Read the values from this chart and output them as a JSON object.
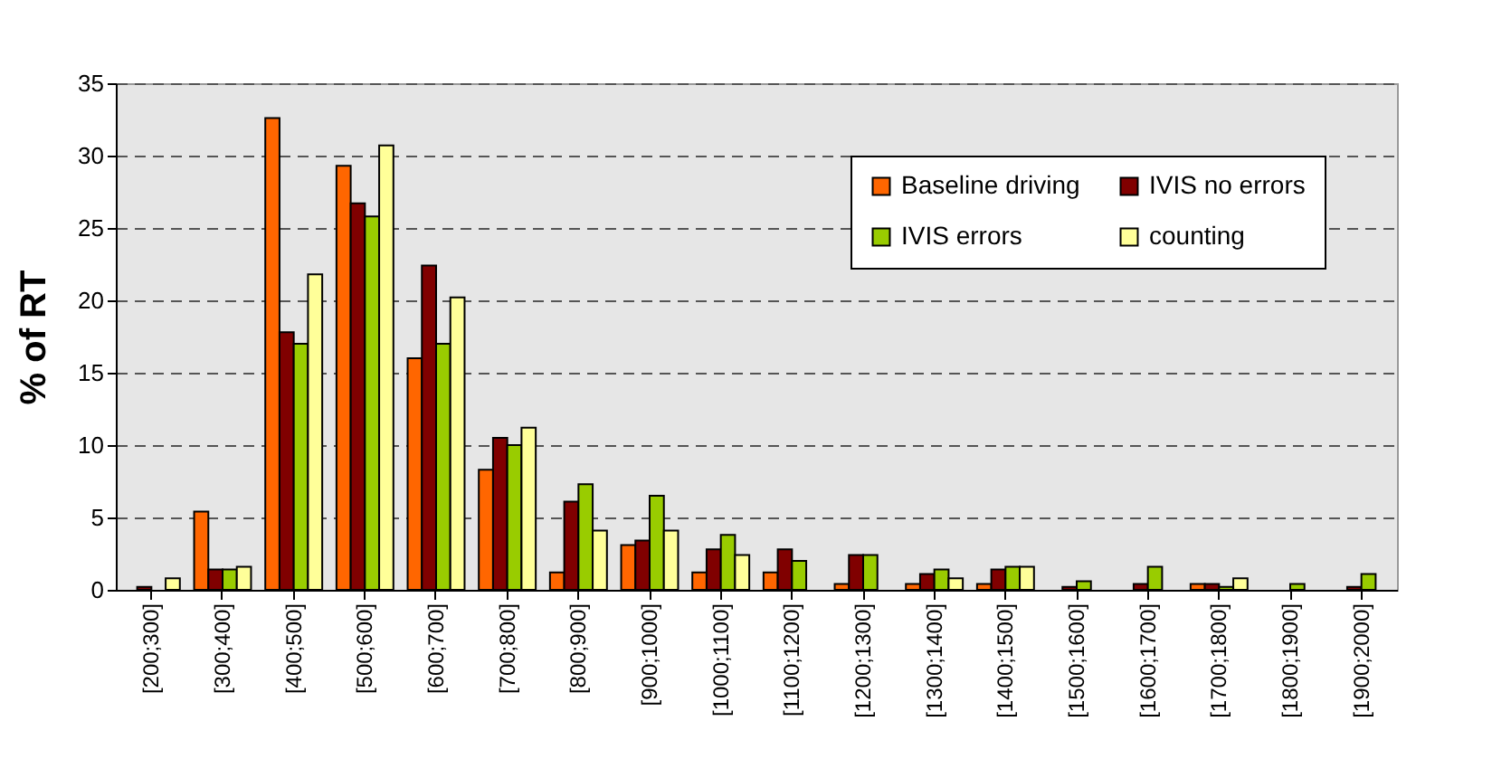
{
  "chart_data": {
    "type": "bar",
    "ylabel": "% of RT",
    "categories": [
      "[200;300]",
      "[300;400]",
      "[400;500]",
      "[500;600]",
      "[600;700]",
      "[700;800]",
      "[800;900]",
      "[900;1000]",
      "[1000;1100]",
      "[1100;1200]",
      "[1200;1300]",
      "[1300;1400]",
      "[1400;1500]",
      "[1500;1600]",
      "[1600;1700]",
      "[1700;1800]",
      "[1800;1900]",
      "[1900;2000]"
    ],
    "series": [
      {
        "name": "Baseline driving",
        "color": "#ff6600",
        "values": [
          null,
          5.4,
          32.6,
          29.3,
          16.0,
          8.3,
          1.2,
          3.1,
          1.2,
          1.2,
          0.4,
          0.4,
          0.4,
          null,
          null,
          0.4,
          null,
          null
        ]
      },
      {
        "name": "IVIS no errors",
        "color": "#800000",
        "values": [
          0.2,
          1.4,
          17.8,
          26.7,
          22.4,
          10.5,
          6.1,
          3.4,
          2.8,
          2.8,
          2.4,
          1.1,
          1.4,
          0.2,
          0.4,
          0.4,
          null,
          0.2
        ]
      },
      {
        "name": "IVIS errors",
        "color": "#99cc00",
        "values": [
          null,
          1.4,
          17.0,
          25.8,
          17.0,
          10.0,
          7.3,
          6.5,
          3.8,
          2.0,
          2.4,
          1.4,
          1.6,
          0.6,
          1.6,
          0.2,
          0.4,
          1.1
        ]
      },
      {
        "name": "counting",
        "color": "#ffff99",
        "values": [
          0.8,
          1.6,
          21.8,
          30.7,
          20.2,
          11.2,
          4.1,
          4.1,
          2.4,
          null,
          null,
          0.8,
          1.6,
          null,
          null,
          0.8,
          null,
          null
        ]
      }
    ],
    "ylim": [
      0,
      35
    ],
    "yticks": [
      0,
      5,
      10,
      15,
      20,
      25,
      30,
      35
    ],
    "grid": "y",
    "legend": "top right"
  }
}
